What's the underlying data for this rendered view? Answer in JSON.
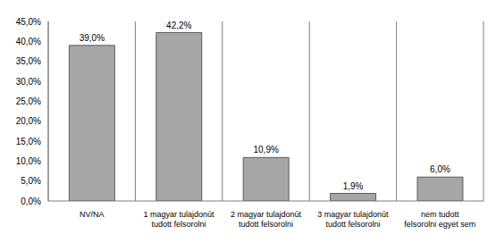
{
  "chart_data": {
    "type": "bar",
    "categories": [
      "NV/NA",
      "1 magyar tulajdonút tudott felsorolni",
      "2 magyar tulajdonút tudott felsorolni",
      "3 magyar tulajdonút tudott felsorolni",
      "nem tudott felsorolni egyet sem"
    ],
    "values": [
      39.0,
      42.2,
      10.9,
      1.9,
      6.0
    ],
    "value_labels": [
      "39,0%",
      "42,2%",
      "10,9%",
      "1,9%",
      "6,0%"
    ],
    "data_labels": true,
    "color": "#a6a6a6",
    "ylim": [
      0,
      45
    ],
    "yticks": [
      {
        "value": 0,
        "label": "0,0%"
      },
      {
        "value": 5,
        "label": "5,0%"
      },
      {
        "value": 10,
        "label": "10,0%"
      },
      {
        "value": 15,
        "label": "15,0%"
      },
      {
        "value": 20,
        "label": "20,0%"
      },
      {
        "value": 25,
        "label": "25,0%"
      },
      {
        "value": 30,
        "label": "30,0%"
      },
      {
        "value": 35,
        "label": "35,0%"
      },
      {
        "value": 40,
        "label": "40,0%"
      },
      {
        "value": 45,
        "label": "45,0%"
      }
    ],
    "grid": true
  }
}
